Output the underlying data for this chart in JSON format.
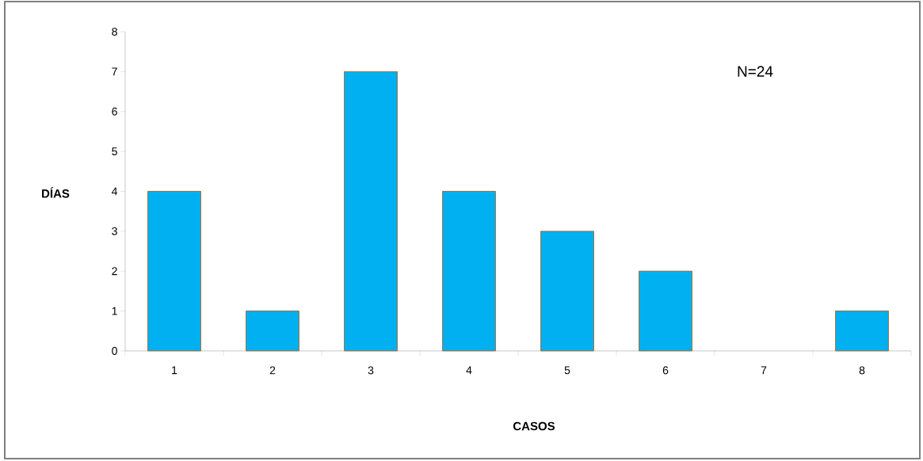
{
  "chart_data": {
    "type": "bar",
    "xlabel": "CASOS",
    "ylabel": "DÍAS",
    "categories": [
      "1",
      "2",
      "3",
      "4",
      "5",
      "6",
      "7",
      "8"
    ],
    "values": [
      4,
      1,
      7,
      4,
      3,
      2,
      0,
      1
    ],
    "color": "#00b0f0",
    "ylim": [
      0,
      8
    ],
    "yticks": [
      0,
      1,
      2,
      3,
      4,
      5,
      6,
      7,
      8
    ],
    "grid": false,
    "annotations": [
      "N=24"
    ]
  }
}
